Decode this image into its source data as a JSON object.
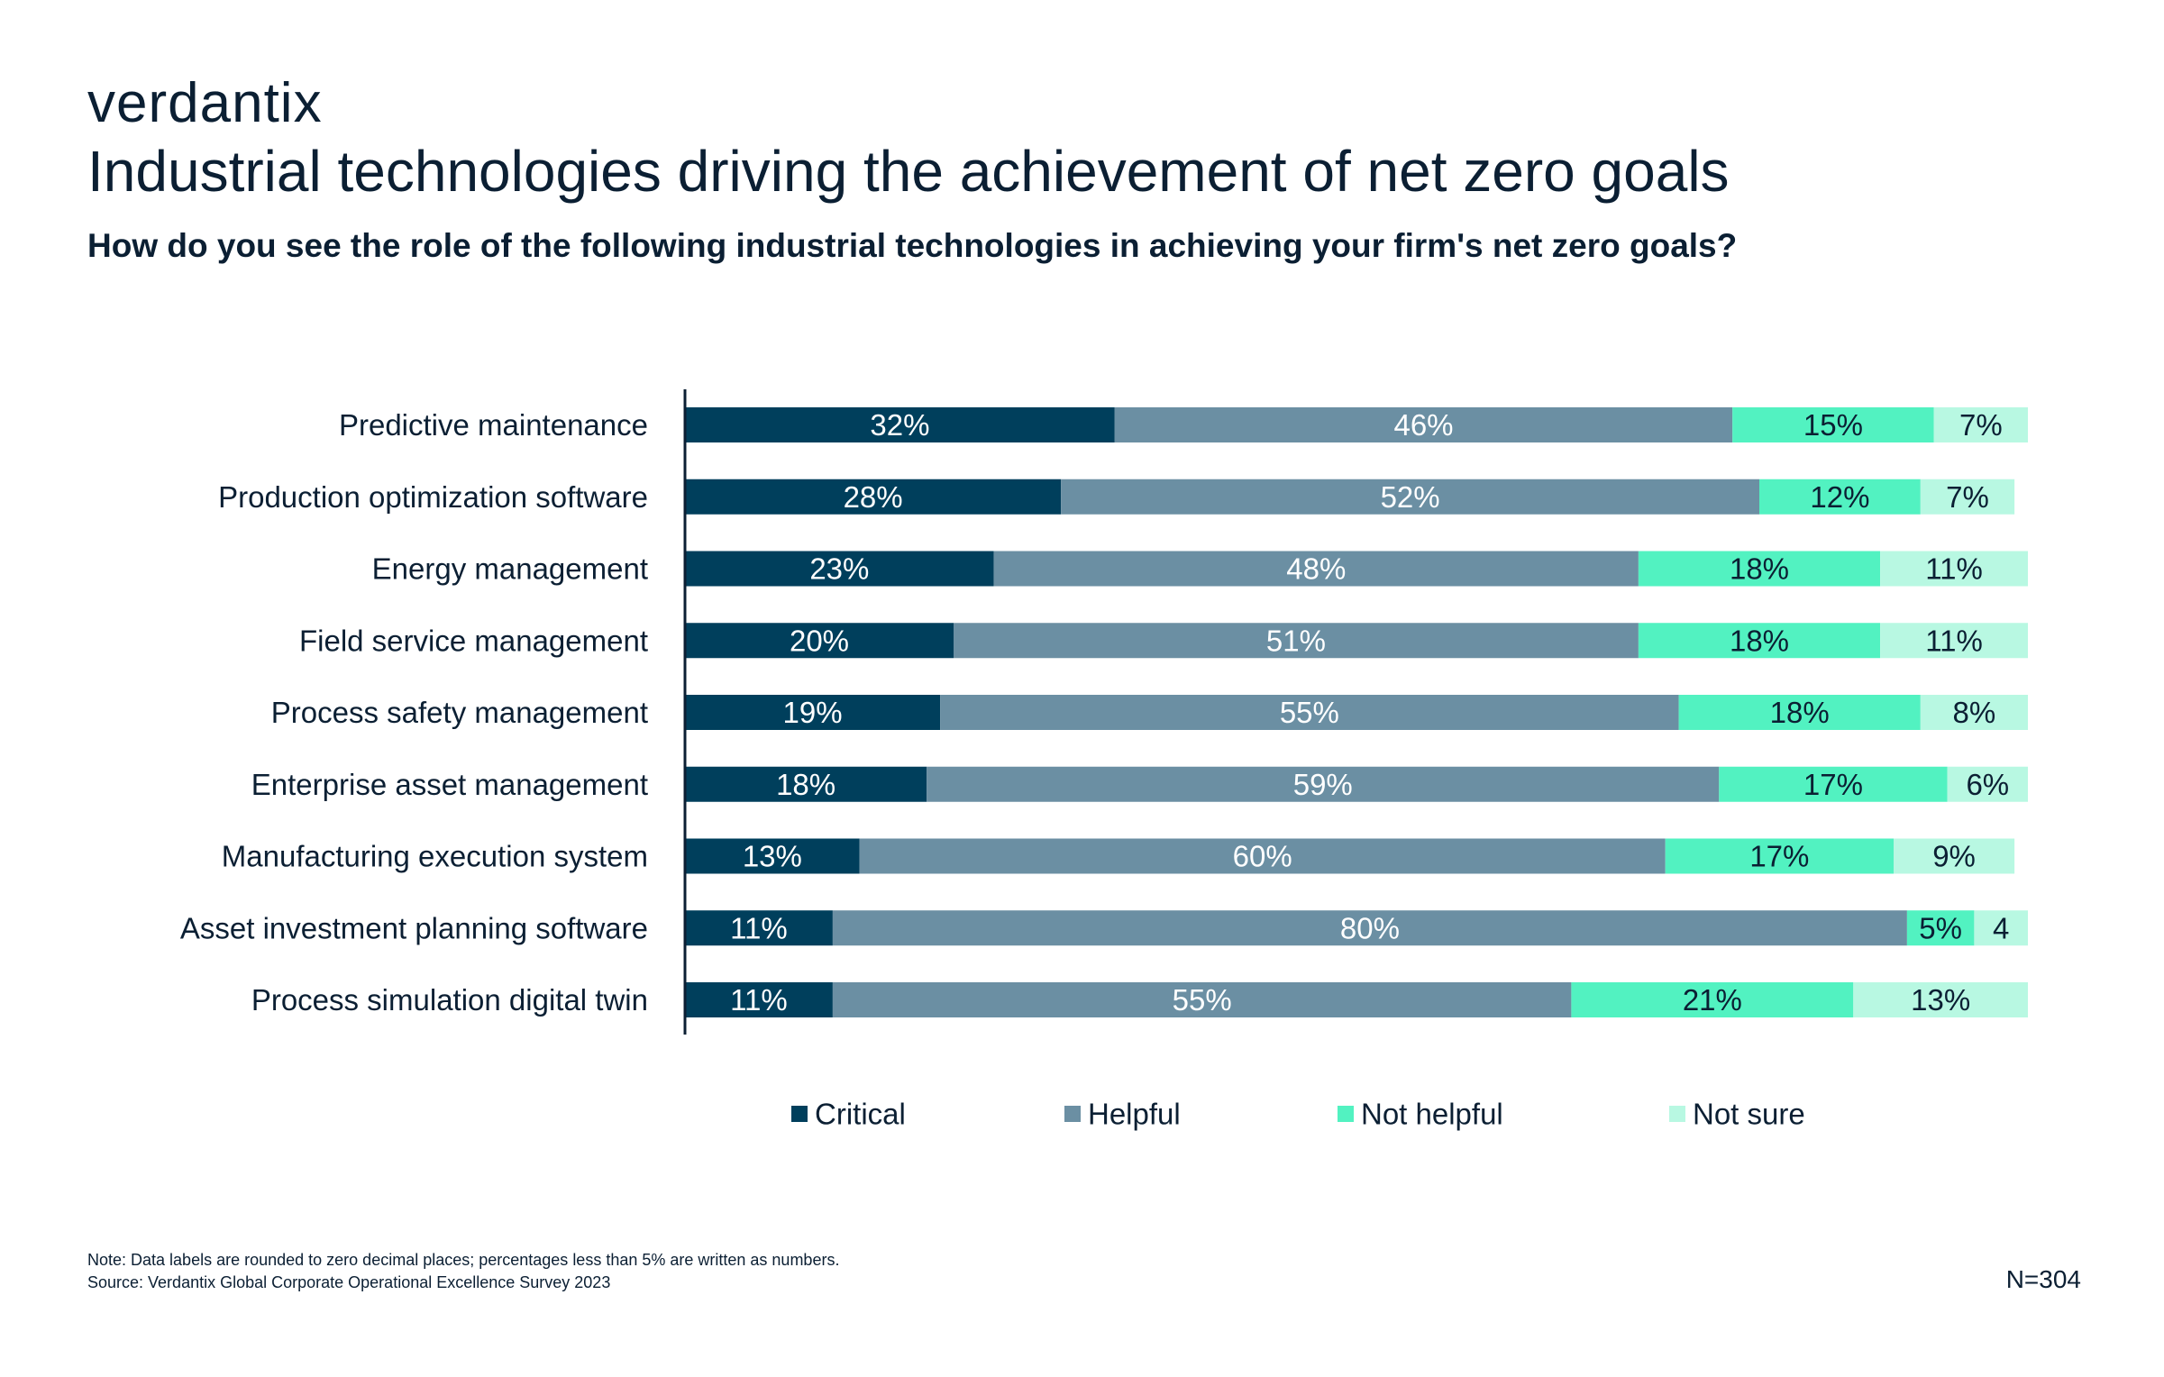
{
  "brand": "verdantix",
  "title": "Industrial technologies driving the achievement of net zero goals",
  "subtitle": "How do you see the role of the following industrial technologies in achieving your firm's net zero goals?",
  "note": "Note: Data labels are rounded to zero decimal places; percentages less than 5% are written as numbers.",
  "source": "Source: Verdantix Global Corporate Operational Excellence Survey 2023",
  "sample_size": "N=304",
  "chart_data": {
    "type": "bar",
    "orientation": "horizontal",
    "stacked": true,
    "categories": [
      "Predictive maintenance",
      "Production optimization software",
      "Energy management",
      "Field service management",
      "Process safety management",
      "Enterprise asset management",
      "Manufacturing execution system",
      "Asset investment planning software",
      "Process simulation digital twin"
    ],
    "series": [
      {
        "name": "Critical",
        "color": "#003f5c",
        "label_color": "#ffffff",
        "values": [
          32,
          28,
          23,
          20,
          19,
          18,
          13,
          11,
          11
        ],
        "labels": [
          "32%",
          "28%",
          "23%",
          "20%",
          "19%",
          "18%",
          "13%",
          "11%",
          "11%"
        ]
      },
      {
        "name": "Helpful",
        "color": "#6b8fa3",
        "label_color": "#ffffff",
        "values": [
          46,
          52,
          48,
          51,
          55,
          59,
          60,
          80,
          55
        ],
        "labels": [
          "46%",
          "52%",
          "48%",
          "51%",
          "55%",
          "59%",
          "60%",
          "80%",
          "55%"
        ]
      },
      {
        "name": "Not helpful",
        "color": "#52f2c1",
        "label_color": "#0b1f33",
        "values": [
          15,
          12,
          18,
          18,
          18,
          17,
          17,
          5,
          21
        ],
        "labels": [
          "15%",
          "12%",
          "18%",
          "18%",
          "18%",
          "17%",
          "17%",
          "5%",
          "21%"
        ]
      },
      {
        "name": "Not sure",
        "color": "#b8f8e2",
        "label_color": "#0b1f33",
        "values": [
          7,
          7,
          11,
          11,
          8,
          6,
          9,
          4,
          13
        ],
        "labels": [
          "7%",
          "7%",
          "11%",
          "11%",
          "8%",
          "6%",
          "9%",
          "4",
          "13%"
        ]
      }
    ],
    "xlim": [
      0,
      100
    ],
    "grid": false,
    "legend_position": "bottom"
  }
}
